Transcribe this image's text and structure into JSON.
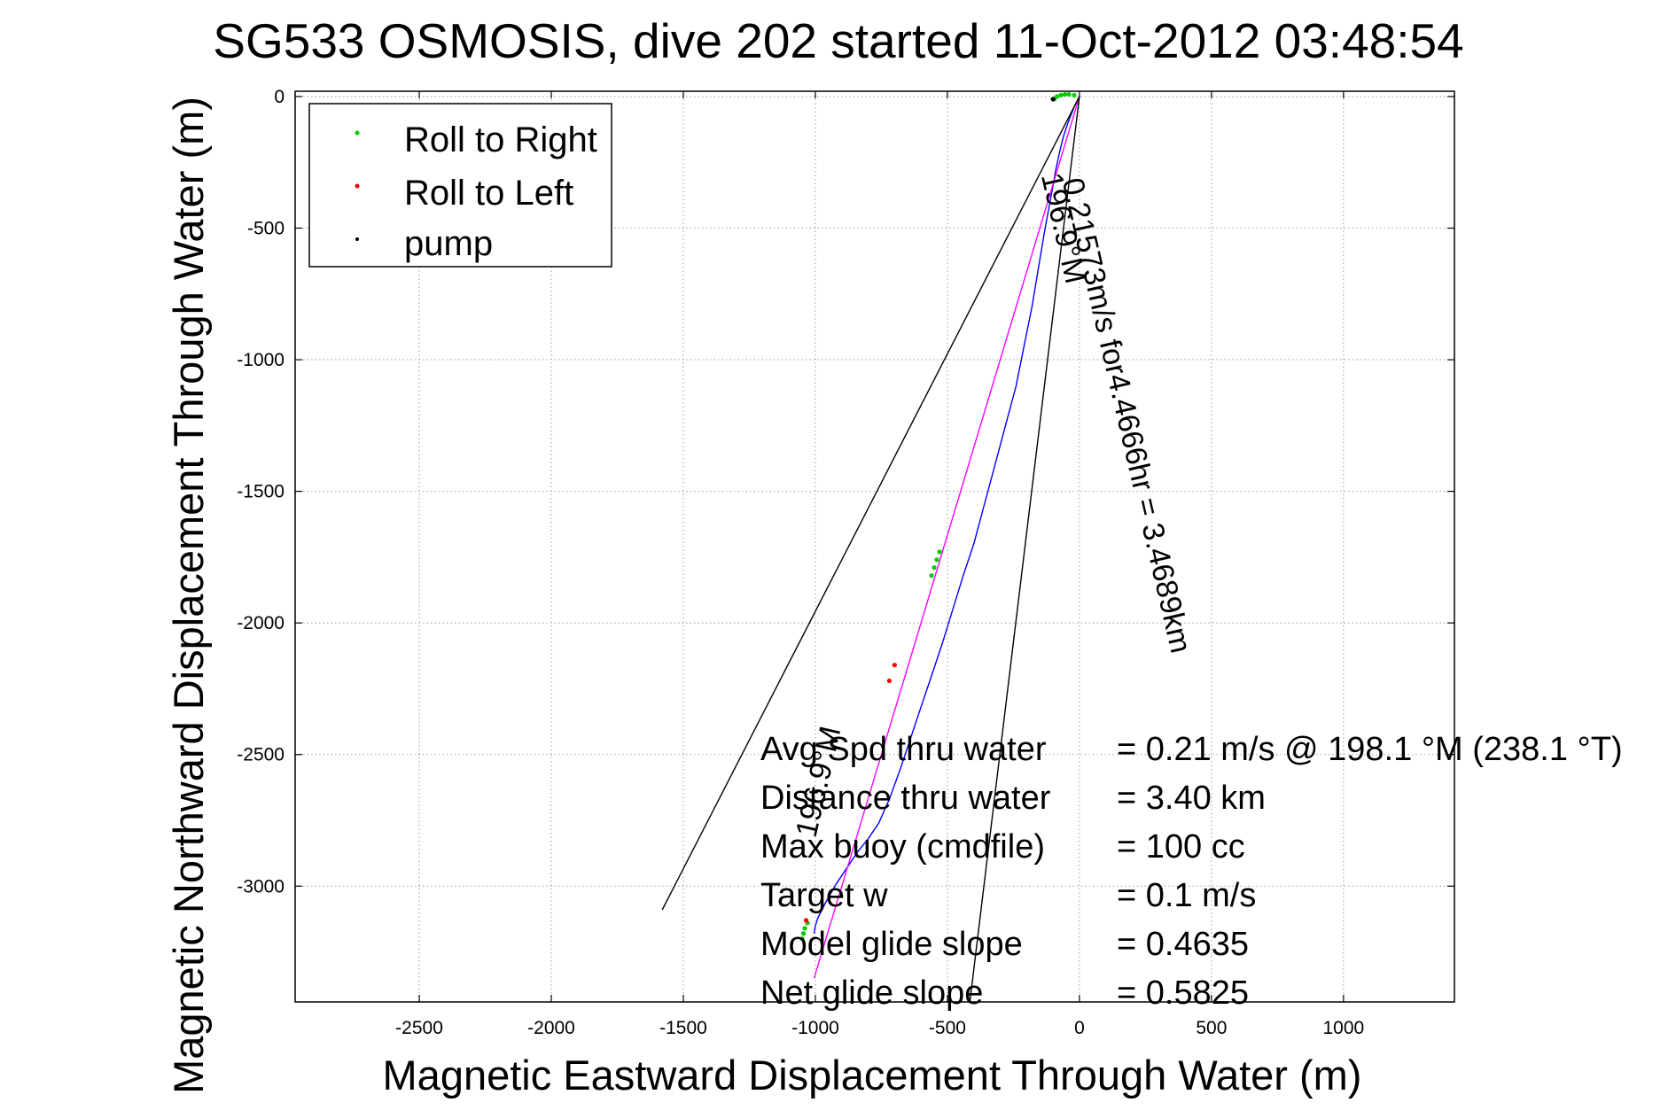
{
  "chart_data": {
    "type": "line",
    "title": "SG533 OSMOSIS, dive 202 started 11-Oct-2012 03:48:54",
    "xlabel": "Magnetic Eastward Displacement Through Water (m)",
    "ylabel": "Magnetic Northward Displacement Through Water (m)",
    "xlim": [
      -2970,
      1420
    ],
    "ylim": [
      -3440,
      20
    ],
    "xticks": [
      -2500,
      -2000,
      -1500,
      -1000,
      -500,
      0,
      500,
      1000
    ],
    "yticks": [
      0,
      -500,
      -1000,
      -1500,
      -2000,
      -2500,
      -3000
    ],
    "grid": true,
    "legend": {
      "position": "top-left",
      "entries": [
        {
          "label": "Roll to Right",
          "color": "#00cc00"
        },
        {
          "label": "Roll to Left",
          "color": "#ff0000"
        },
        {
          "label": "pump",
          "color": "#000000"
        }
      ]
    },
    "series": [
      {
        "name": "track",
        "color": "#0000ff",
        "x": [
          0,
          -20,
          -40,
          -60,
          -75,
          -90,
          -100,
          -130,
          -155,
          -180,
          -210,
          -240,
          -280,
          -320,
          -360,
          -400,
          -440,
          -480,
          -520,
          -560,
          -600,
          -640,
          -680,
          -720,
          -760,
          -800,
          -840,
          -880,
          -920,
          -960,
          -990,
          -1000,
          -1005
        ],
        "y": [
          0,
          -40,
          -90,
          -150,
          -210,
          -280,
          -340,
          -500,
          -650,
          -800,
          -950,
          -1100,
          -1250,
          -1400,
          -1550,
          -1700,
          -1820,
          -1950,
          -2080,
          -2200,
          -2320,
          -2440,
          -2560,
          -2670,
          -2760,
          -2820,
          -2870,
          -2930,
          -2990,
          -3060,
          -3120,
          -3150,
          -3180
        ]
      },
      {
        "name": "roll-to-right",
        "color": "#00cc00",
        "marker": "point",
        "x": [
          -20,
          -40,
          -55,
          -70,
          -85,
          -95,
          -530,
          -540,
          -550,
          -560,
          -1030,
          -1040,
          -1045,
          -1050
        ],
        "y": [
          5,
          8,
          8,
          5,
          0,
          -10,
          -1730,
          -1760,
          -1790,
          -1820,
          -3140,
          -3160,
          -3180,
          -3200
        ]
      },
      {
        "name": "roll-to-left",
        "color": "#ff0000",
        "marker": "point",
        "x": [
          -700,
          -720,
          -1035
        ],
        "y": [
          -2160,
          -2220,
          -3130
        ]
      },
      {
        "name": "pump",
        "color": "#000000",
        "marker": "point",
        "x": [
          -100
        ],
        "y": [
          -10
        ]
      },
      {
        "name": "fit-line",
        "color": "#ff00ff",
        "x": [
          0,
          -1005
        ],
        "y": [
          0,
          -3350
        ]
      },
      {
        "name": "cone-left",
        "color": "#000000",
        "x": [
          0,
          -1580
        ],
        "y": [
          0,
          -3090
        ]
      },
      {
        "name": "cone-right",
        "color": "#000000",
        "x": [
          0,
          -415
        ],
        "y": [
          0,
          -3440
        ]
      }
    ],
    "annotations": [
      {
        "text": "0.21573m/s for4.4666hr = 3.4689km",
        "x": -65,
        "y": -320,
        "rotation": 77
      },
      {
        "text": "196.9°M",
        "x": -145,
        "y": -300,
        "rotation": 77
      },
      {
        "text": "196.9°M",
        "x": -1000,
        "y": -2820,
        "rotation": -77
      }
    ],
    "info_box": [
      {
        "label": "Avg Spd thru water",
        "value": "=  0.21 m/s @ 198.1 °M (238.1 °T)"
      },
      {
        "label": "Distance thru water",
        "value": "=  3.40 km"
      },
      {
        "label": "Max buoy (cmdfile)",
        "value": "= 100 cc"
      },
      {
        "label": "Target w",
        "value": "= 0.1 m/s"
      },
      {
        "label": "Model glide slope",
        "value": "= 0.4635"
      },
      {
        "label": "Net glide slope",
        "value": "= 0.5825"
      }
    ]
  }
}
